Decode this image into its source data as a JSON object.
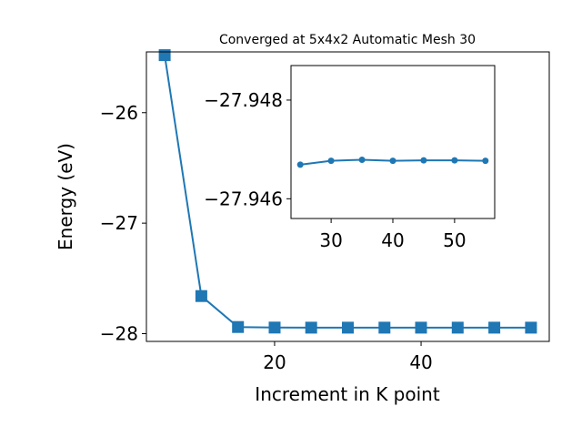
{
  "chart_data": [
    {
      "type": "line",
      "title": "Converged at 5x4x2 Automatic Mesh 30",
      "xlabel": "Increment in K point",
      "ylabel": "Energy (eV)",
      "xlim": [
        2.5,
        57.5
      ],
      "ylim": [
        -28.07,
        -25.45
      ],
      "xticks": [
        20,
        40
      ],
      "xtick_labels": [
        "20",
        "40"
      ],
      "yticks": [
        -26,
        -27,
        -28
      ],
      "ytick_labels": [
        "−26",
        "−27",
        "−28"
      ],
      "grid": false,
      "marker": "square",
      "color": "#1f77b4",
      "series": [
        {
          "x": [
            5,
            10,
            15,
            20,
            25,
            30,
            35,
            40,
            45,
            50,
            55
          ],
          "y": [
            -25.48,
            -27.66,
            -27.94,
            -27.945,
            -27.946,
            -27.946,
            -27.946,
            -27.946,
            -27.946,
            -27.946,
            -27.946
          ]
        }
      ]
    },
    {
      "type": "line",
      "inset": true,
      "xlim": [
        23.5,
        56.5
      ],
      "ylim": [
        -27.9487,
        -27.9456
      ],
      "yaxis_inverted": true,
      "xticks": [
        30,
        40,
        50
      ],
      "xtick_labels": [
        "30",
        "40",
        "50"
      ],
      "yticks": [
        -27.948,
        -27.946
      ],
      "ytick_labels": [
        "−27.948",
        "−27.946"
      ],
      "grid": false,
      "marker": "circle",
      "color": "#1f77b4",
      "series": [
        {
          "x": [
            25,
            30,
            35,
            40,
            45,
            50,
            55
          ],
          "y": [
            -27.94669,
            -27.94677,
            -27.94679,
            -27.94677,
            -27.94678,
            -27.94678,
            -27.94677
          ]
        }
      ]
    }
  ]
}
